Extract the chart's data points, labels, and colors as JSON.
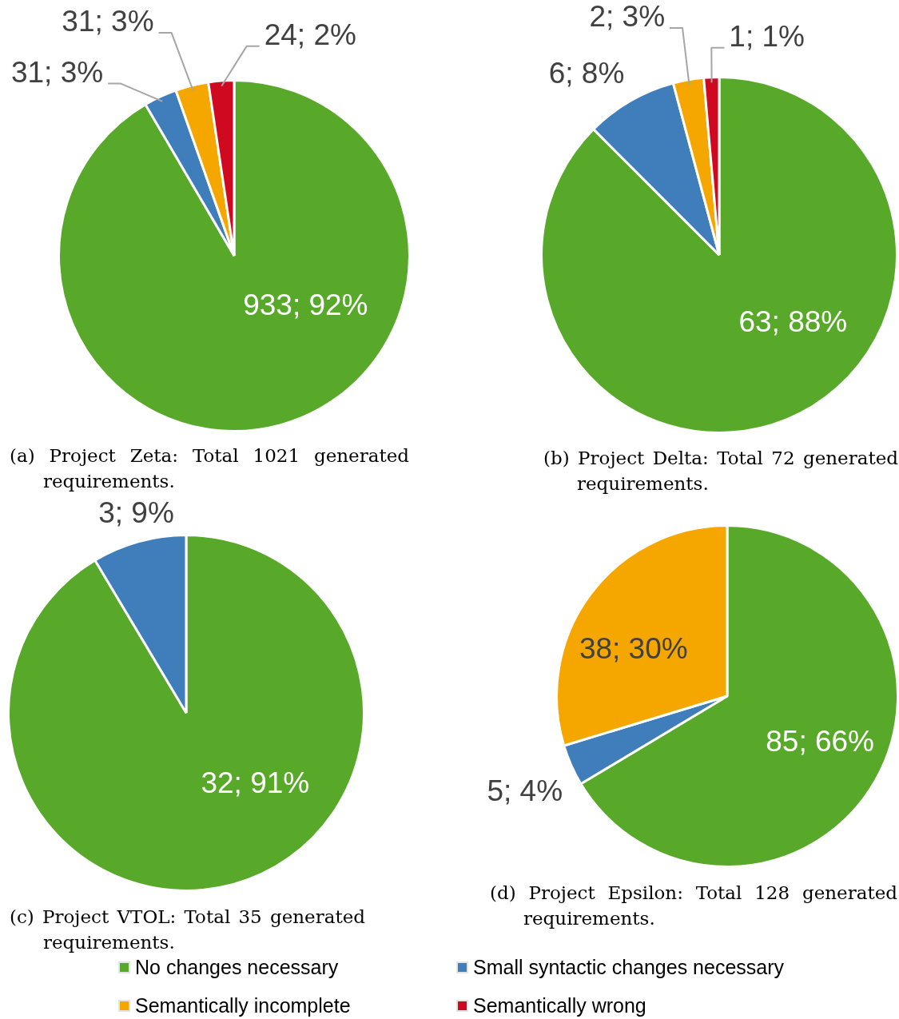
{
  "chart_data": [
    {
      "type": "pie",
      "title": "(a) Project Zeta: Total 1021 generated requirements.",
      "categories": [
        null,
        null,
        null,
        null
      ],
      "values": [
        933,
        31,
        31,
        24
      ],
      "colors": [
        "#58a92a",
        "#407ebb",
        "#f5a700",
        "#cf0a20"
      ],
      "value_labels": [
        "933; 92%",
        "31; 3%",
        "31; 3%",
        "24; 2%"
      ]
    },
    {
      "type": "pie",
      "title": "(b) Project Delta: Total 72 generated requirements.",
      "categories": [
        null,
        null,
        null,
        null
      ],
      "values": [
        63,
        6,
        2,
        1
      ],
      "colors": [
        "#58a92a",
        "#407ebb",
        "#f5a700",
        "#cf0a20"
      ],
      "value_labels": [
        "63; 88%",
        "6; 8%",
        "2; 3%",
        "1; 1%"
      ]
    },
    {
      "type": "pie",
      "title": "(c) Project VTOL: Total 35 generated requirements.",
      "categories": [
        null,
        null
      ],
      "values": [
        32,
        3
      ],
      "colors": [
        "#58a92a",
        "#407ebb"
      ],
      "value_labels": [
        "32; 91%",
        "3; 9%"
      ]
    },
    {
      "type": "pie",
      "title": "(d) Project Epsilon: Total 128 generated requirements.",
      "categories": [
        "No changes necessary",
        "Small syntactic changes necessary",
        "Semantically incomplete",
        "Semantically wrong"
      ],
      "values": [
        85,
        5,
        38,
        0
      ],
      "colors": [
        "#58a92a",
        "#407ebb",
        "#f5a700",
        "#cf0a20"
      ],
      "value_labels": [
        "85; 66%",
        "5; 4%",
        "38; 30%",
        null
      ],
      "legend": "bottom"
    }
  ]
}
